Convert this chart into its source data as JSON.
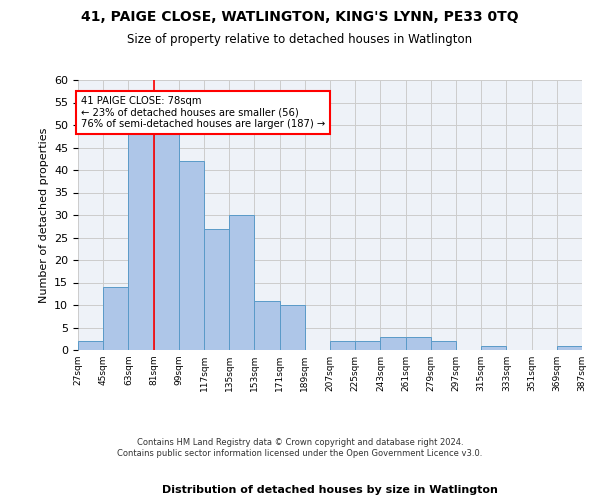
{
  "title": "41, PAIGE CLOSE, WATLINGTON, KING'S LYNN, PE33 0TQ",
  "subtitle": "Size of property relative to detached houses in Watlington",
  "xlabel": "Distribution of detached houses by size in Watlington",
  "ylabel": "Number of detached properties",
  "bin_edges": [
    27,
    45,
    63,
    81,
    99,
    117,
    135,
    153,
    171,
    189,
    207,
    225,
    243,
    261,
    279,
    297,
    315,
    333,
    351,
    369,
    387
  ],
  "bin_labels": [
    "27sqm",
    "45sqm",
    "63sqm",
    "81sqm",
    "99sqm",
    "117sqm",
    "135sqm",
    "153sqm",
    "171sqm",
    "189sqm",
    "207sqm",
    "225sqm",
    "243sqm",
    "261sqm",
    "279sqm",
    "297sqm",
    "315sqm",
    "333sqm",
    "351sqm",
    "369sqm",
    "387sqm"
  ],
  "counts": [
    2,
    14,
    50,
    50,
    42,
    27,
    30,
    11,
    10,
    0,
    2,
    2,
    3,
    3,
    2,
    0,
    1,
    0,
    0,
    1
  ],
  "bar_color": "#aec6e8",
  "bar_edge_color": "#5a9ac8",
  "red_line_x": 81,
  "annotation_text": "41 PAIGE CLOSE: 78sqm\n← 23% of detached houses are smaller (56)\n76% of semi-detached houses are larger (187) →",
  "ylim": [
    0,
    60
  ],
  "yticks": [
    0,
    5,
    10,
    15,
    20,
    25,
    30,
    35,
    40,
    45,
    50,
    55,
    60
  ],
  "grid_color": "#cccccc",
  "bg_color": "#eef2f8",
  "footer_line1": "Contains HM Land Registry data © Crown copyright and database right 2024.",
  "footer_line2": "Contains public sector information licensed under the Open Government Licence v3.0."
}
